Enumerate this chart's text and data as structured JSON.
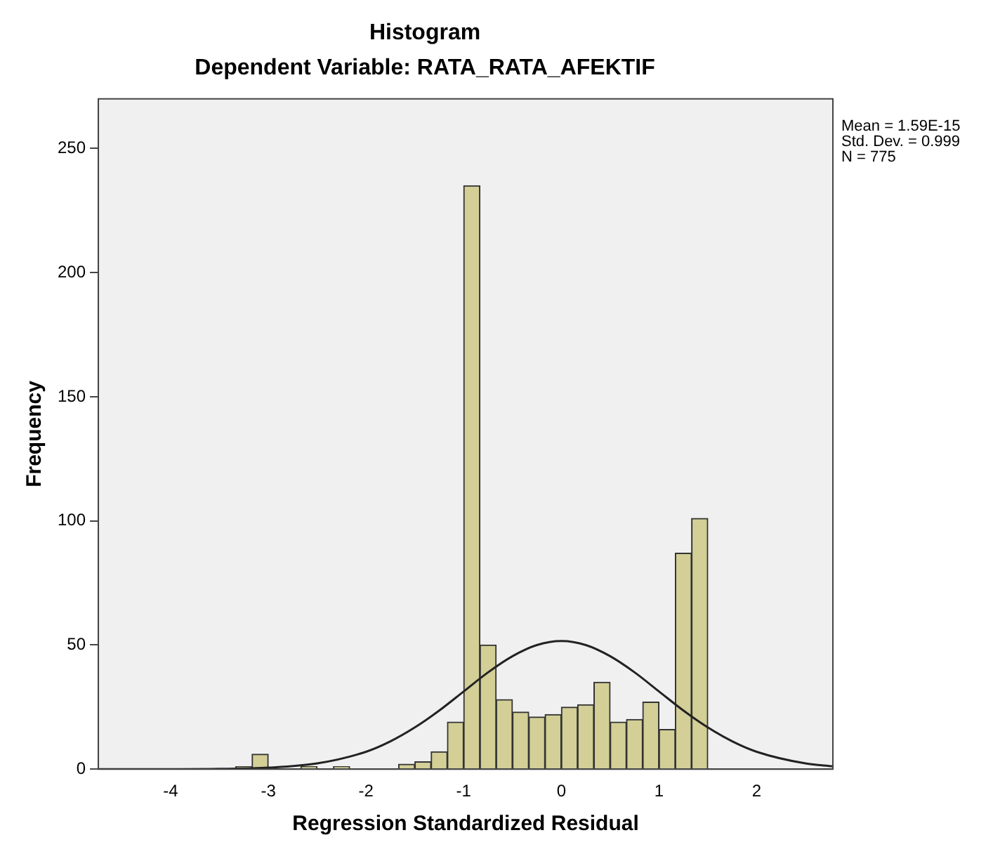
{
  "chart_data": {
    "type": "histogram",
    "title": "Histogram",
    "subtitle": "Dependent Variable: RATA_RATA_AFEKTIF",
    "xlabel": "Regression Standardized Residual",
    "ylabel": "Frequency",
    "bins": [
      -3.333,
      -3.167,
      -3,
      -2.833,
      -2.667,
      -2.5,
      -2.333,
      -2.167,
      -2,
      -1.833,
      -1.667,
      -1.5,
      -1.333,
      -1.167,
      -1,
      -0.833,
      -0.667,
      -0.5,
      -0.333,
      -0.167,
      0,
      0.167,
      0.333,
      0.5,
      0.667,
      0.833,
      1,
      1.167,
      1.333,
      1.5
    ],
    "values": [
      1,
      6,
      0,
      0,
      1,
      0,
      1,
      0,
      0,
      0,
      2,
      3,
      7,
      19,
      235,
      50,
      28,
      23,
      21,
      22,
      25,
      26,
      35,
      19,
      20,
      27,
      16,
      87,
      101
    ],
    "color": "#d3cf97",
    "series": [
      {
        "type": "line",
        "color": "#222222",
        "x": [
          -4.74,
          -4,
          -3.5,
          -3,
          -2.5,
          -2,
          -1.75,
          -1.5,
          -1.25,
          -1,
          -0.75,
          -0.5,
          -0.25,
          0,
          0.25,
          0.5,
          0.75,
          1,
          1.25,
          1.5,
          1.75,
          2,
          2.5,
          2.78
        ],
        "values": [
          0,
          0,
          0.1,
          0.6,
          2.3,
          7,
          11.2,
          16.8,
          23.6,
          31.3,
          39,
          45.5,
          50,
          51.6,
          50,
          45.5,
          39,
          31.3,
          23.6,
          16.8,
          11.2,
          7,
          2.3,
          1.1
        ]
      }
    ],
    "xlim": [
      -4.74,
      2.78
    ],
    "ylim": [
      0,
      270
    ],
    "xticks": [
      -4,
      -3,
      -2,
      -1,
      0,
      1,
      2
    ],
    "yticks": [
      0,
      50,
      100,
      150,
      200,
      250
    ],
    "legend": false,
    "annotations": [
      "Mean = 1.59E-15",
      "Std. Dev. = 0.999",
      "N = 775"
    ]
  }
}
